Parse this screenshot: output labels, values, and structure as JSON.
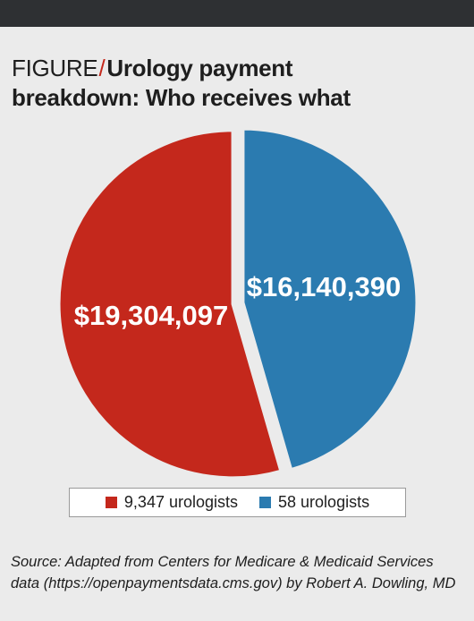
{
  "figure": {
    "prefix": "FIGURE",
    "separator": "/",
    "title_line1": "Urology payment",
    "title_line2": "breakdown: Who receives what"
  },
  "chart_data": {
    "type": "pie",
    "slices": [
      {
        "name": "9,347 urologists",
        "value": 19304097,
        "label": "$19,304,097",
        "color": "#c4281c"
      },
      {
        "name": "58 urologists",
        "value": 16140390,
        "label": "$16,140,390",
        "color": "#2b7bb0"
      }
    ],
    "legend_position": "bottom"
  },
  "source": {
    "line1": "Source: Adapted from Centers for Medicare & Medicaid Services",
    "line2": "data (https://openpaymentsdata.cms.gov) by Robert A. Dowling, MD"
  },
  "colors": {
    "top_bar": "#2e3033",
    "background": "#ebebeb",
    "accent": "#c4281c"
  }
}
